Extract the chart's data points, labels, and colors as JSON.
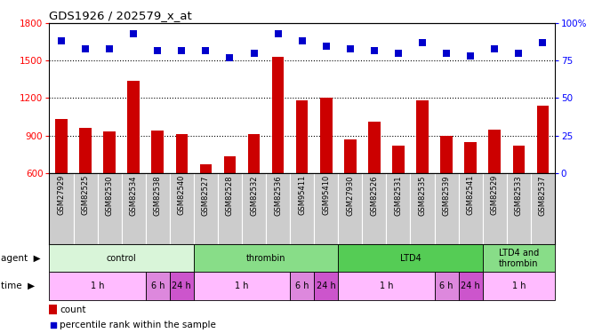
{
  "title": "GDS1926 / 202579_x_at",
  "samples": [
    "GSM27929",
    "GSM82525",
    "GSM82530",
    "GSM82534",
    "GSM82538",
    "GSM82540",
    "GSM82527",
    "GSM82528",
    "GSM82532",
    "GSM82536",
    "GSM95411",
    "GSM95410",
    "GSM27930",
    "GSM82526",
    "GSM82531",
    "GSM82535",
    "GSM82539",
    "GSM82541",
    "GSM82529",
    "GSM82533",
    "GSM82537"
  ],
  "counts": [
    1030,
    960,
    930,
    1340,
    940,
    910,
    670,
    730,
    910,
    1530,
    1180,
    1200,
    870,
    1010,
    820,
    1180,
    900,
    850,
    950,
    820,
    1140
  ],
  "percentiles": [
    88,
    83,
    83,
    93,
    82,
    82,
    82,
    77,
    80,
    93,
    88,
    85,
    83,
    82,
    80,
    87,
    80,
    78,
    83,
    80,
    87
  ],
  "ylim_left": [
    600,
    1800
  ],
  "ylim_right": [
    0,
    100
  ],
  "yticks_left": [
    600,
    900,
    1200,
    1500,
    1800
  ],
  "yticks_right": [
    0,
    25,
    50,
    75,
    100
  ],
  "bar_color": "#cc0000",
  "dot_color": "#0000cc",
  "dot_size": 40,
  "hline_values": [
    900,
    1200,
    1500
  ],
  "agent_groups": [
    {
      "label": "control",
      "start": 0,
      "end": 6,
      "color": "#d9f5d9"
    },
    {
      "label": "thrombin",
      "start": 6,
      "end": 12,
      "color": "#88dd88"
    },
    {
      "label": "LTD4",
      "start": 12,
      "end": 18,
      "color": "#55cc55"
    },
    {
      "label": "LTD4 and\nthrombin",
      "start": 18,
      "end": 21,
      "color": "#88dd88"
    }
  ],
  "time_groups": [
    {
      "label": "1 h",
      "start": 0,
      "end": 4,
      "color": "#ffbbff"
    },
    {
      "label": "6 h",
      "start": 4,
      "end": 5,
      "color": "#dd88dd"
    },
    {
      "label": "24 h",
      "start": 5,
      "end": 6,
      "color": "#cc55cc"
    },
    {
      "label": "1 h",
      "start": 6,
      "end": 10,
      "color": "#ffbbff"
    },
    {
      "label": "6 h",
      "start": 10,
      "end": 11,
      "color": "#dd88dd"
    },
    {
      "label": "24 h",
      "start": 11,
      "end": 12,
      "color": "#cc55cc"
    },
    {
      "label": "1 h",
      "start": 12,
      "end": 16,
      "color": "#ffbbff"
    },
    {
      "label": "6 h",
      "start": 16,
      "end": 17,
      "color": "#dd88dd"
    },
    {
      "label": "24 h",
      "start": 17,
      "end": 18,
      "color": "#cc55cc"
    },
    {
      "label": "1 h",
      "start": 18,
      "end": 21,
      "color": "#ffbbff"
    }
  ],
  "legend_bar_color": "#cc0000",
  "legend_dot_color": "#0000cc",
  "xlabels_bg": "#cccccc",
  "bar_width": 0.5
}
